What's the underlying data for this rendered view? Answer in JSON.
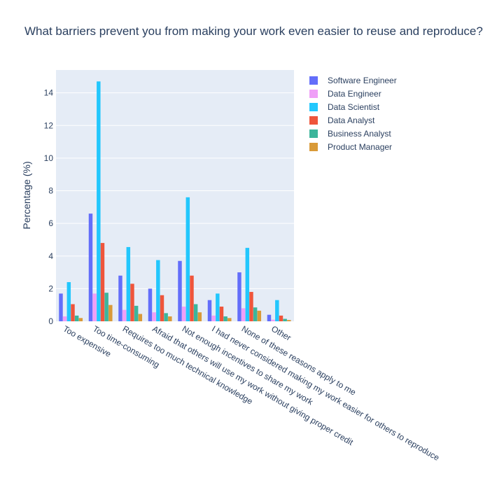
{
  "chart_data": {
    "type": "bar",
    "title": "What barriers prevent you from making your work even easier to reuse and reproduce?",
    "xlabel": "",
    "ylabel": "Percentage (%)",
    "ylim": [
      0,
      15.4
    ],
    "yticks": [
      0,
      2,
      4,
      6,
      8,
      10,
      12,
      14
    ],
    "grid": true,
    "legend_position": "right",
    "categories": [
      "Too expensive",
      "Too time-consuming",
      "Requires too much technical knowledge",
      "Afraid that others will use my work without giving proper credit",
      "Not enough incentives to share my work",
      "I had never considered making my work easier for others to reproduce",
      "None of these reasons apply to me",
      "Other"
    ],
    "series": [
      {
        "name": "Software Engineer",
        "color": "#636efa",
        "values": [
          1.7,
          6.6,
          2.8,
          2.0,
          3.7,
          1.3,
          3.0,
          0.4
        ]
      },
      {
        "name": "Data Engineer",
        "color": "#ef9ff7",
        "values": [
          0.3,
          1.7,
          0.7,
          0.55,
          0.9,
          0.35,
          0.8,
          0.1
        ]
      },
      {
        "name": "Data Scientist",
        "color": "#22c7fd",
        "values": [
          2.4,
          14.7,
          4.55,
          3.75,
          7.6,
          1.7,
          4.5,
          1.3
        ]
      },
      {
        "name": "Data Analyst",
        "color": "#ef553b",
        "values": [
          1.05,
          4.8,
          2.3,
          1.6,
          2.8,
          0.9,
          1.8,
          0.35
        ]
      },
      {
        "name": "Business Analyst",
        "color": "#3cb59b",
        "values": [
          0.35,
          1.75,
          0.95,
          0.5,
          1.05,
          0.3,
          0.85,
          0.15
        ]
      },
      {
        "name": "Product Manager",
        "color": "#d99a38",
        "values": [
          0.2,
          1.0,
          0.45,
          0.3,
          0.55,
          0.2,
          0.65,
          0.08
        ]
      }
    ]
  }
}
